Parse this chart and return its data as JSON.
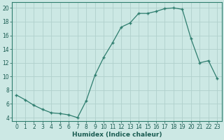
{
  "x": [
    0,
    1,
    2,
    3,
    4,
    5,
    6,
    7,
    8,
    9,
    10,
    11,
    12,
    13,
    14,
    15,
    16,
    17,
    18,
    19,
    20,
    21,
    22,
    23
  ],
  "y": [
    7.3,
    6.6,
    5.8,
    5.2,
    4.7,
    4.6,
    4.4,
    4.0,
    6.5,
    10.2,
    12.8,
    14.9,
    17.2,
    17.8,
    19.2,
    19.2,
    19.5,
    19.9,
    20.0,
    19.8,
    15.5,
    12.0,
    12.3,
    9.7
  ],
  "line_color": "#2e7d6e",
  "marker": "+",
  "marker_size": 3.5,
  "marker_lw": 1.0,
  "line_width": 0.9,
  "bg_color": "#cce8e4",
  "grid_color": "#b0d0cc",
  "axis_color": "#2e7d6e",
  "xlabel": "Humidex (Indice chaleur)",
  "xlim": [
    -0.5,
    23.5
  ],
  "ylim": [
    3.5,
    20.8
  ],
  "yticks": [
    4,
    6,
    8,
    10,
    12,
    14,
    16,
    18,
    20
  ],
  "xticks": [
    0,
    1,
    2,
    3,
    4,
    5,
    6,
    7,
    8,
    9,
    10,
    11,
    12,
    13,
    14,
    15,
    16,
    17,
    18,
    19,
    20,
    21,
    22,
    23
  ],
  "font_color": "#1a5c52",
  "tick_fontsize": 5.5,
  "xlabel_fontsize": 6.5
}
